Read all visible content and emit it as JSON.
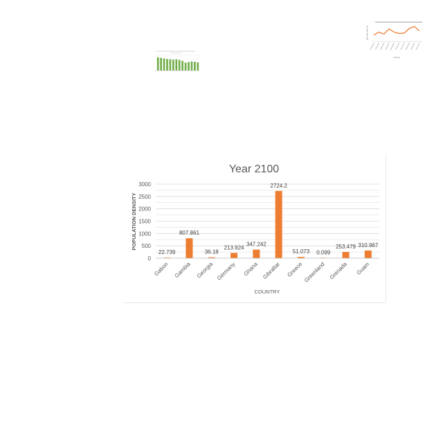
{
  "chart_data": [
    {
      "type": "bar",
      "title": "Year 2100",
      "xlabel": "COUNTRY",
      "ylabel": "POPULATION DENSITY",
      "categories": [
        "Gabon",
        "Gambia",
        "Georgia",
        "Germany",
        "Ghana",
        "Gibraltar",
        "Greece",
        "Greenland",
        "Grenada",
        "Guam"
      ],
      "values": [
        22.739,
        807.861,
        36.18,
        213.924,
        347.242,
        2724.2,
        51.073,
        0.099,
        253.479,
        310.967
      ],
      "data_labels": [
        "22.739",
        "807.861",
        "36.18",
        "213.924",
        "347.242",
        "2724.2",
        "51.073",
        "0.099",
        "253.479",
        "310.967"
      ],
      "yticks": [
        0,
        500,
        1000,
        1500,
        2000,
        2500,
        3000
      ],
      "ylim": [
        0,
        3000
      ],
      "grid": true,
      "colors": {
        "bar": "#ed7d31",
        "grid": "#d9d9d9",
        "text": "#595959"
      }
    },
    {
      "type": "bar",
      "title": "",
      "values": [
        2.2,
        2.1,
        2.0,
        1.9,
        1.85,
        1.8,
        1.85,
        1.75,
        1.6,
        1.3,
        1.4,
        1.5,
        1.45,
        1.35
      ],
      "ylim": [
        0,
        2.5
      ],
      "colors": {
        "bar": "#70ad47"
      }
    },
    {
      "type": "line",
      "title": "",
      "values": [
        3.0,
        3.6,
        3.2,
        4.2,
        3.6,
        3.3,
        3.4,
        4.3,
        4.7,
        3.8
      ],
      "ylim": [
        2,
        5
      ],
      "colors": {
        "line": "#ed7d31"
      }
    }
  ]
}
